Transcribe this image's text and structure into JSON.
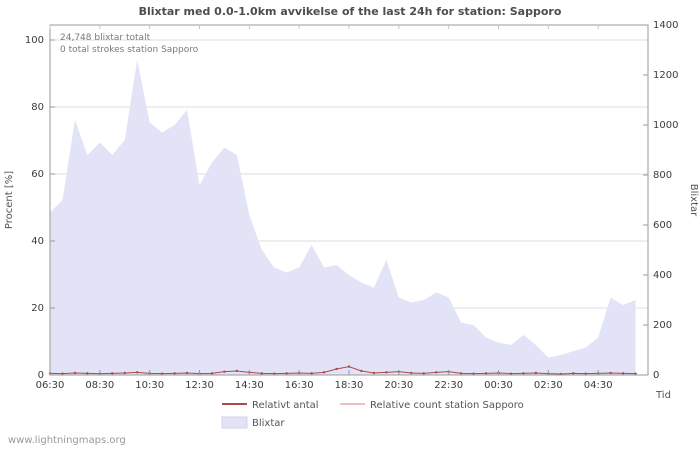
{
  "title": "Blixtar med 0.0-1.0km avvikelse of the last 24h for station: Sapporo",
  "annotations": {
    "total": "24,748 blixtar totalt",
    "station": "0 total strokes station Sapporo"
  },
  "axes": {
    "left_label": "Procent [%]",
    "right_label": "Blixtar",
    "x_label": "Tid",
    "left_ticks": [
      0,
      20,
      40,
      60,
      80,
      100
    ],
    "right_ticks": [
      0,
      200,
      400,
      600,
      800,
      1000,
      1200,
      1400
    ],
    "x_ticks": [
      "06:30",
      "08:30",
      "10:30",
      "12:30",
      "14:30",
      "16:30",
      "18:30",
      "20:30",
      "22:30",
      "00:30",
      "02:30",
      "04:30"
    ]
  },
  "legend": [
    {
      "label": "Relativt antal",
      "type": "line",
      "color": "#aa4a4a"
    },
    {
      "label": "Relative count station Sapporo",
      "type": "line",
      "color": "#eec0c0"
    },
    {
      "label": "Blixtar",
      "type": "area",
      "color": "#e3e3f7"
    }
  ],
  "watermark": "www.lightningmaps.org",
  "chart_data": {
    "type": "area",
    "x_start": "06:30",
    "x_step_minutes": 30,
    "x_range_hours": 24,
    "ylim_left_percent": [
      0,
      100
    ],
    "ylim_right_count": [
      0,
      1400
    ],
    "grid": true,
    "legend_position": "bottom-center",
    "series": [
      {
        "name": "Blixtar",
        "axis": "right",
        "type": "area",
        "color": "#e3e3f7",
        "values": [
          650,
          700,
          1020,
          880,
          930,
          880,
          940,
          1260,
          1010,
          970,
          1000,
          1060,
          760,
          850,
          910,
          880,
          640,
          500,
          430,
          410,
          430,
          520,
          430,
          440,
          400,
          370,
          350,
          460,
          310,
          290,
          300,
          330,
          310,
          210,
          200,
          150,
          130,
          120,
          160,
          120,
          70,
          80,
          95,
          110,
          150,
          310,
          280,
          300
        ]
      },
      {
        "name": "Relativt antal",
        "axis": "left",
        "type": "line",
        "dots": true,
        "color": "#aa4a4a",
        "values": [
          0.5,
          0.4,
          0.6,
          0.5,
          0.4,
          0.5,
          0.6,
          0.8,
          0.5,
          0.4,
          0.5,
          0.6,
          0.4,
          0.5,
          1.0,
          1.2,
          0.8,
          0.5,
          0.4,
          0.5,
          0.6,
          0.5,
          0.8,
          1.8,
          2.5,
          1.2,
          0.6,
          0.8,
          1.0,
          0.6,
          0.5,
          0.8,
          1.0,
          0.5,
          0.4,
          0.5,
          0.6,
          0.4,
          0.5,
          0.6,
          0.4,
          0.3,
          0.5,
          0.4,
          0.5,
          0.6,
          0.5,
          0.4
        ]
      },
      {
        "name": "Relative count station Sapporo",
        "axis": "left",
        "type": "line",
        "dots": false,
        "color": "#eec0c0",
        "values": [
          0,
          0,
          0,
          0,
          0,
          0,
          0,
          0,
          0,
          0,
          0,
          0,
          0,
          0,
          0,
          0,
          0,
          0,
          0,
          0,
          0,
          0,
          0,
          0,
          0,
          0,
          0,
          0,
          0,
          0,
          0,
          0,
          0,
          0,
          0,
          0,
          0,
          0,
          0,
          0,
          0,
          0,
          0,
          0,
          0,
          0,
          0,
          0
        ]
      }
    ]
  }
}
